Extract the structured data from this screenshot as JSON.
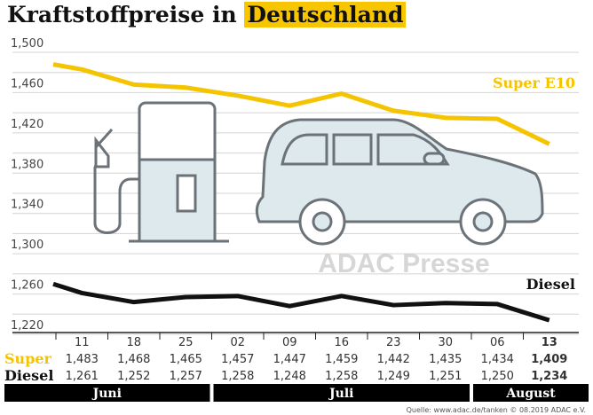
{
  "title": {
    "part1": "Kraftstoffpreise in ",
    "highlight": "Deutschland"
  },
  "chart_data": {
    "type": "line",
    "title": "Kraftstoffpreise in Deutschland",
    "categories": [
      "11",
      "18",
      "25",
      "02",
      "09",
      "16",
      "23",
      "30",
      "06",
      "13"
    ],
    "months": [
      {
        "label": "Juni",
        "span": 3
      },
      {
        "label": "Juli",
        "span": 5
      },
      {
        "label": "August",
        "span": 2
      }
    ],
    "ylim": [
      1.22,
      1.5
    ],
    "yticks": [
      "1,220",
      "1,260",
      "1,300",
      "1,340",
      "1,380",
      "1,420",
      "1,460",
      "1,500"
    ],
    "ytick_values": [
      1.22,
      1.26,
      1.3,
      1.34,
      1.38,
      1.42,
      1.46,
      1.5
    ],
    "grid": true,
    "series": [
      {
        "name": "Super E10",
        "row_label": "Super",
        "color": "#f5c400",
        "start": 1.488,
        "values": [
          1.483,
          1.468,
          1.465,
          1.457,
          1.447,
          1.459,
          1.442,
          1.435,
          1.434,
          1.409
        ],
        "display": [
          "1,483",
          "1,468",
          "1,465",
          "1,457",
          "1,447",
          "1,459",
          "1,442",
          "1,435",
          "1,434",
          "1,409"
        ]
      },
      {
        "name": "Diesel",
        "row_label": "Diesel",
        "color": "#111111",
        "start": 1.27,
        "values": [
          1.261,
          1.252,
          1.257,
          1.258,
          1.248,
          1.258,
          1.249,
          1.251,
          1.25,
          1.234
        ],
        "display": [
          "1,261",
          "1,252",
          "1,257",
          "1,258",
          "1,248",
          "1,258",
          "1,249",
          "1,251",
          "1,250",
          "1,234"
        ]
      }
    ]
  },
  "watermark": "ADAC Presse",
  "source": "Quelle: www.adac.de/tanken   © 08.2019  ADAC e.V."
}
